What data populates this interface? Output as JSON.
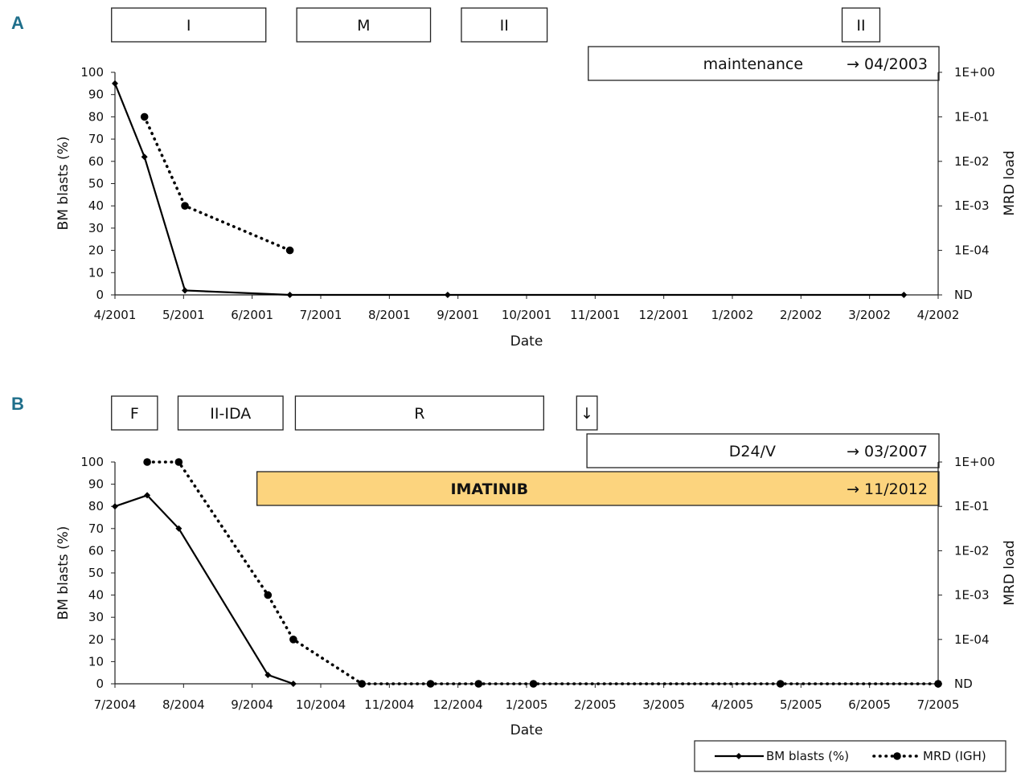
{
  "colors": {
    "line": "#000000",
    "imatinib_fill": "#fcd47e",
    "panel_letter": "#1f6f8b"
  },
  "chart_data": [
    {
      "panel": "A",
      "type": "line",
      "xlabel": "Date",
      "ylabel": "BM blasts (%)",
      "y2label": "MRD load",
      "x_ticks": [
        "4/2001",
        "5/2001",
        "6/2001",
        "7/2001",
        "8/2001",
        "9/2001",
        "10/2001",
        "11/2001",
        "12/2001",
        "1/2002",
        "2/2002",
        "3/2002",
        "4/2002"
      ],
      "y_ticks": [
        "0",
        "10",
        "20",
        "30",
        "40",
        "50",
        "60",
        "70",
        "80",
        "90",
        "100"
      ],
      "y2_ticks": [
        "ND",
        "1E-04",
        "1E-03",
        "1E-02",
        "1E-01",
        "1E+00"
      ],
      "ylim": [
        0,
        100
      ],
      "xlim_months": [
        0,
        12
      ],
      "treatment_boxes": [
        {
          "label": "I",
          "start_month": -0.05,
          "end_month": 2.2
        },
        {
          "label": "M",
          "start_month": 2.65,
          "end_month": 4.6
        },
        {
          "label": "II",
          "start_month": 5.05,
          "end_month": 6.3
        },
        {
          "label": "II",
          "start_month": 10.6,
          "end_month": 11.15
        }
      ],
      "long_boxes": [
        {
          "label": "maintenance",
          "arrow_label": "→ 04/2003",
          "start_month": 6.9,
          "highlight": false
        }
      ],
      "series": [
        {
          "name": "BM blasts (%)",
          "axis": "left",
          "style": "solid",
          "marker": "diamond",
          "x_months": [
            0,
            0.43,
            1.02,
            2.55,
            4.85,
            11.5
          ],
          "values": [
            95,
            62,
            2,
            0,
            0,
            0
          ]
        },
        {
          "name": "MRD (IGH)",
          "axis": "right",
          "style": "dotted",
          "marker": "circle",
          "x_months": [
            0.43,
            1.02,
            2.55
          ],
          "values": [
            0.1,
            0.001,
            0.0001
          ]
        }
      ]
    },
    {
      "panel": "B",
      "type": "line",
      "xlabel": "Date",
      "ylabel": "BM blasts (%)",
      "y2label": "MRD load",
      "x_ticks": [
        "7/2004",
        "8/2004",
        "9/2004",
        "10/2004",
        "11/2004",
        "12/2004",
        "1/2005",
        "2/2005",
        "3/2005",
        "4/2005",
        "5/2005",
        "6/2005",
        "7/2005"
      ],
      "y_ticks": [
        "0",
        "10",
        "20",
        "30",
        "40",
        "50",
        "60",
        "70",
        "80",
        "90",
        "100"
      ],
      "y2_ticks": [
        "ND",
        "1E-04",
        "1E-03",
        "1E-02",
        "1E-01",
        "1E+00"
      ],
      "ylim": [
        0,
        100
      ],
      "xlim_months": [
        0,
        12
      ],
      "treatment_boxes": [
        {
          "label": "F",
          "start_month": -0.05,
          "end_month": 0.62
        },
        {
          "label": "II-IDA",
          "start_month": 0.92,
          "end_month": 2.45
        },
        {
          "label": "R",
          "start_month": 2.63,
          "end_month": 6.25
        },
        {
          "label": "↓",
          "start_month": 6.73,
          "end_month": 7.03
        }
      ],
      "long_boxes": [
        {
          "label": "D24/V",
          "arrow_label": "→ 03/2007",
          "start_month": 6.88,
          "highlight": false
        },
        {
          "label": "IMATINIB",
          "arrow_label": "→ 11/2012",
          "start_month": 2.07,
          "highlight": true
        }
      ],
      "series": [
        {
          "name": "BM blasts (%)",
          "axis": "left",
          "style": "solid",
          "marker": "diamond",
          "x_months": [
            0,
            0.47,
            0.93,
            2.23,
            2.6
          ],
          "values": [
            80,
            85,
            70,
            4,
            0
          ]
        },
        {
          "name": "MRD (IGH)",
          "axis": "right",
          "style": "dotted",
          "marker": "circle",
          "x_months": [
            0.47,
            0.93,
            2.23,
            2.6,
            3.6,
            4.6,
            5.3,
            6.1,
            9.7,
            12
          ],
          "values": [
            1,
            1,
            0.001,
            0.0001,
            "ND",
            "ND",
            "ND",
            "ND",
            "ND",
            "ND"
          ]
        }
      ]
    }
  ],
  "legend": {
    "items": [
      {
        "label": "BM blasts (%)",
        "style": "solid",
        "marker": "diamond"
      },
      {
        "label": "MRD (IGH)",
        "style": "dotted",
        "marker": "circle"
      }
    ]
  }
}
